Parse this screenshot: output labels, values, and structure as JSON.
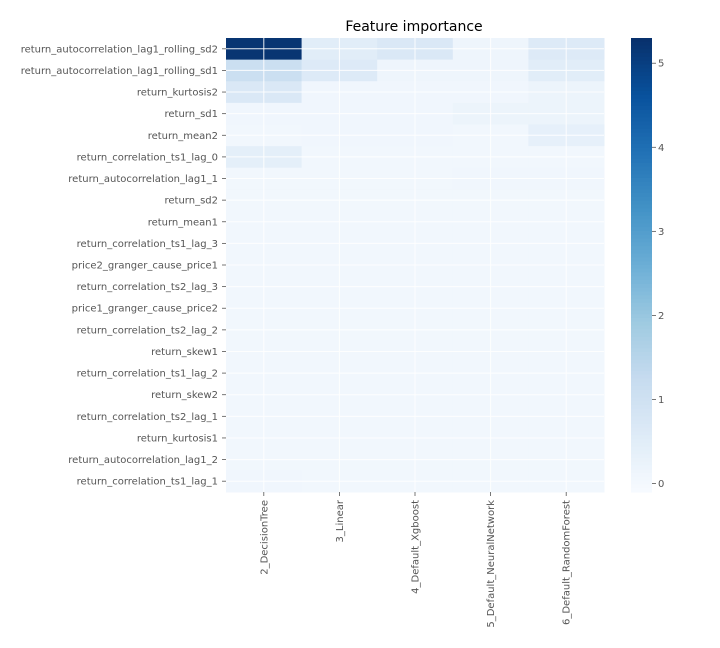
{
  "chart_data": {
    "type": "heatmap",
    "title": "Feature importance",
    "rows": [
      "return_autocorrelation_lag1_rolling_sd2",
      "return_autocorrelation_lag1_rolling_sd1",
      "return_kurtosis2",
      "return_sd1",
      "return_mean2",
      "return_correlation_ts1_lag_0",
      "return_autocorrelation_lag1_1",
      "return_sd2",
      "return_mean1",
      "return_correlation_ts1_lag_3",
      "price2_granger_cause_price1",
      "return_correlation_ts2_lag_3",
      "price1_granger_cause_price2",
      "return_correlation_ts2_lag_2",
      "return_skew1",
      "return_correlation_ts1_lag_2",
      "return_skew2",
      "return_correlation_ts2_lag_1",
      "return_kurtosis1",
      "return_autocorrelation_lag1_2",
      "return_correlation_ts1_lag_1"
    ],
    "columns": [
      "2_DecisionTree",
      "3_Linear",
      "4_Default_Xgboost",
      "5_Default_NeuralNetwork",
      "6_Default_RandomForest"
    ],
    "values": [
      [
        5.2,
        0.5,
        0.7,
        0.15,
        0.6
      ],
      [
        1.1,
        0.6,
        0.15,
        0.15,
        0.5
      ],
      [
        0.7,
        0.1,
        0.1,
        0.1,
        0.2
      ],
      [
        0.1,
        0.1,
        0.1,
        0.2,
        0.2
      ],
      [
        0.05,
        0.1,
        0.1,
        0.05,
        0.35
      ],
      [
        0.4,
        0.05,
        0.05,
        0.05,
        0.05
      ],
      [
        0.05,
        0.05,
        0.05,
        0.1,
        0.1
      ],
      [
        0.05,
        0.05,
        0.05,
        0.05,
        0.05
      ],
      [
        0.05,
        0.05,
        0.05,
        0.05,
        0.05
      ],
      [
        0.05,
        0.05,
        0.05,
        0.05,
        0.05
      ],
      [
        0.05,
        0.05,
        0.05,
        0.05,
        0.05
      ],
      [
        0.05,
        0.05,
        0.05,
        0.05,
        0.05
      ],
      [
        0.05,
        0.05,
        0.05,
        0.05,
        0.05
      ],
      [
        0.05,
        0.05,
        0.05,
        0.05,
        0.05
      ],
      [
        0.05,
        0.05,
        0.05,
        0.05,
        0.05
      ],
      [
        0.05,
        0.05,
        0.05,
        0.05,
        0.05
      ],
      [
        0.05,
        0.05,
        0.05,
        0.05,
        0.05
      ],
      [
        0.05,
        0.05,
        0.05,
        0.05,
        0.05
      ],
      [
        0.05,
        0.05,
        0.05,
        0.05,
        0.05
      ],
      [
        0.05,
        0.05,
        0.05,
        0.05,
        0.05
      ],
      [
        0.1,
        0.05,
        0.05,
        0.05,
        0.05
      ]
    ],
    "colorbar": {
      "range": [
        -0.1,
        5.3
      ],
      "ticks": [
        0,
        1,
        2,
        3,
        4,
        5
      ],
      "colormap": "Blues",
      "colors": [
        "#f7fbff",
        "#deebf7",
        "#c6dbef",
        "#9ecae1",
        "#6baed6",
        "#4292c6",
        "#2171b5",
        "#08519c",
        "#08306b"
      ]
    },
    "grid": true
  }
}
